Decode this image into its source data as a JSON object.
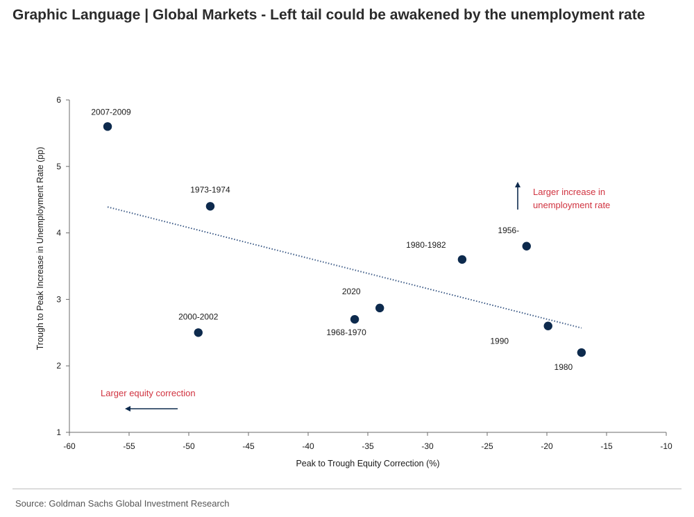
{
  "title": "Graphic Language | Global Markets - Left tail could be awakened by the unemployment rate",
  "source": "Source: Goldman Sachs Global Investment Research",
  "colors": {
    "point": "#0d2a4d",
    "trend": "#3c5a86",
    "annotation": "#d0323f",
    "axis": "#6b6b6b"
  },
  "chart_data": {
    "type": "scatter",
    "xlabel": "Peak to Trough Equity Correction (%)",
    "ylabel": "Trough to Peak Increase in Unemployment Rate (pp)",
    "xlim": [
      -60,
      -10
    ],
    "ylim": [
      1,
      6
    ],
    "x_ticks": [
      -60,
      -55,
      -50,
      -45,
      -40,
      -35,
      -30,
      -25,
      -20,
      -15,
      -10
    ],
    "y_ticks": [
      1,
      2,
      3,
      4,
      5,
      6
    ],
    "grid": false,
    "points": [
      {
        "label": "2007-2009",
        "x": -56.8,
        "y": 5.6
      },
      {
        "label": "1973-1974",
        "x": -48.2,
        "y": 4.4
      },
      {
        "label": "2000-2002",
        "x": -49.2,
        "y": 2.5
      },
      {
        "label": "2020",
        "x": -34.0,
        "y": 2.87
      },
      {
        "label": "1968-1970",
        "x": -36.1,
        "y": 2.7
      },
      {
        "label": "1980-1982",
        "x": -27.1,
        "y": 3.6
      },
      {
        "label": "1956-",
        "x": -21.7,
        "y": 3.8
      },
      {
        "label": "1990",
        "x": -19.9,
        "y": 2.6
      },
      {
        "label": "1980",
        "x": -17.1,
        "y": 2.2
      }
    ],
    "trendline": {
      "x": [
        -56.8,
        -17.1
      ],
      "y": [
        4.39,
        2.57
      ],
      "style": "dotted"
    },
    "annotations": [
      {
        "text": "Larger increase in unemployment rate",
        "lines": [
          "Larger increase in",
          "unemployment rate"
        ],
        "arrow": "up"
      },
      {
        "text": "Larger equity correction",
        "arrow": "left"
      }
    ]
  }
}
